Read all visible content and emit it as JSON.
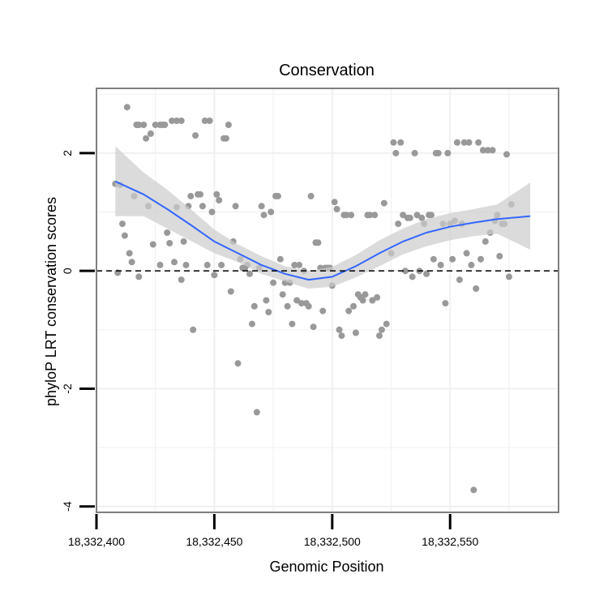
{
  "chart_data": {
    "type": "scatter",
    "title": "Conservation",
    "xlabel": "Genomic Position",
    "ylabel": "phyloP LRT conservation scores",
    "xlim": [
      18332400,
      18332596
    ],
    "ylim": [
      -4.1,
      3.1
    ],
    "x_ticks": [
      18332400,
      18332450,
      18332500,
      18332550
    ],
    "x_tick_labels": [
      "18,332,400",
      "18,332,450",
      "18,332,500",
      "18,332,550"
    ],
    "y_ticks": [
      -4,
      -2,
      0,
      2
    ],
    "y_tick_labels": [
      "-4",
      "-2",
      "0",
      "2"
    ],
    "grid": true,
    "reference_line": {
      "y": 0,
      "style": "dashed"
    },
    "colors": {
      "points": "#999999",
      "smooth_line": "#3366ff",
      "confidence_band": "#cccccc",
      "panel_border": "#7f7f7f",
      "grid": "#f0f0f0"
    },
    "points": [
      [
        18332408,
        1.48
      ],
      [
        18332409,
        -0.03
      ],
      [
        18332410,
        1.46
      ],
      [
        18332411,
        0.8
      ],
      [
        18332412,
        0.6
      ],
      [
        18332413,
        2.78
      ],
      [
        18332414,
        0.3
      ],
      [
        18332415,
        0.15
      ],
      [
        18332416,
        1.27
      ],
      [
        18332417,
        2.48
      ],
      [
        18332418,
        2.48
      ],
      [
        18332418,
        -0.1
      ],
      [
        18332420,
        2.48
      ],
      [
        18332421,
        2.25
      ],
      [
        18332422,
        1.1
      ],
      [
        18332423,
        2.33
      ],
      [
        18332424,
        0.45
      ],
      [
        18332425,
        2.48
      ],
      [
        18332427,
        2.48
      ],
      [
        18332427,
        0.1
      ],
      [
        18332428,
        2.48
      ],
      [
        18332429,
        2.48
      ],
      [
        18332430,
        0.65
      ],
      [
        18332431,
        0.47
      ],
      [
        18332432,
        2.55
      ],
      [
        18332433,
        0.15
      ],
      [
        18332434,
        2.55
      ],
      [
        18332434,
        1.08
      ],
      [
        18332436,
        2.55
      ],
      [
        18332436,
        -0.15
      ],
      [
        18332437,
        0.5
      ],
      [
        18332438,
        0.1
      ],
      [
        18332439,
        1.1
      ],
      [
        18332440,
        1.27
      ],
      [
        18332441,
        -1.0
      ],
      [
        18332442,
        2.3
      ],
      [
        18332443,
        1.3
      ],
      [
        18332444,
        1.3
      ],
      [
        18332445,
        1.1
      ],
      [
        18332446,
        2.55
      ],
      [
        18332447,
        0.1
      ],
      [
        18332448,
        2.55
      ],
      [
        18332449,
        1.0
      ],
      [
        18332450,
        -0.07
      ],
      [
        18332451,
        1.3
      ],
      [
        18332452,
        1.2
      ],
      [
        18332453,
        0.1
      ],
      [
        18332454,
        2.25
      ],
      [
        18332455,
        2.25
      ],
      [
        18332456,
        2.48
      ],
      [
        18332457,
        -0.35
      ],
      [
        18332458,
        0.5
      ],
      [
        18332459,
        1.1
      ],
      [
        18332460,
        -1.57
      ],
      [
        18332461,
        0.2
      ],
      [
        18332462,
        0.05
      ],
      [
        18332463,
        0.05
      ],
      [
        18332464,
        0.1
      ],
      [
        18332465,
        -0.05
      ],
      [
        18332466,
        -0.9
      ],
      [
        18332467,
        -0.6
      ],
      [
        18332468,
        -2.4
      ],
      [
        18332469,
        0.05
      ],
      [
        18332470,
        1.1
      ],
      [
        18332471,
        0.95
      ],
      [
        18332472,
        -0.5
      ],
      [
        18332473,
        -0.7
      ],
      [
        18332474,
        1.0
      ],
      [
        18332475,
        -0.2
      ],
      [
        18332476,
        1.27
      ],
      [
        18332477,
        1.27
      ],
      [
        18332478,
        0.2
      ],
      [
        18332479,
        -0.4
      ],
      [
        18332480,
        -0.2
      ],
      [
        18332481,
        -0.6
      ],
      [
        18332482,
        -0.2
      ],
      [
        18332483,
        -0.9
      ],
      [
        18332484,
        0.1
      ],
      [
        18332485,
        -0.5
      ],
      [
        18332486,
        0.1
      ],
      [
        18332487,
        -0.55
      ],
      [
        18332488,
        0.0
      ],
      [
        18332489,
        -0.55
      ],
      [
        18332490,
        -0.6
      ],
      [
        18332491,
        1.27
      ],
      [
        18332492,
        -0.95
      ],
      [
        18332493,
        0.48
      ],
      [
        18332494,
        0.48
      ],
      [
        18332495,
        0.05
      ],
      [
        18332496,
        -0.68
      ],
      [
        18332497,
        0.05
      ],
      [
        18332498,
        0.05
      ],
      [
        18332499,
        0.05
      ],
      [
        18332500,
        -0.25
      ],
      [
        18332501,
        1.17
      ],
      [
        18332502,
        1.05
      ],
      [
        18332503,
        -1.0
      ],
      [
        18332504,
        -1.1
      ],
      [
        18332505,
        0.95
      ],
      [
        18332506,
        0.95
      ],
      [
        18332507,
        -0.68
      ],
      [
        18332508,
        0.95
      ],
      [
        18332509,
        -0.6
      ],
      [
        18332510,
        -1.05
      ],
      [
        18332511,
        -0.4
      ],
      [
        18332512,
        -0.45
      ],
      [
        18332513,
        -0.5
      ],
      [
        18332514,
        -0.4
      ],
      [
        18332515,
        0.95
      ],
      [
        18332516,
        0.95
      ],
      [
        18332517,
        -0.5
      ],
      [
        18332518,
        0.95
      ],
      [
        18332519,
        -0.45
      ],
      [
        18332520,
        -1.1
      ],
      [
        18332521,
        -1.0
      ],
      [
        18332522,
        1.15
      ],
      [
        18332523,
        -0.9
      ],
      [
        18332525,
        0.3
      ],
      [
        18332526,
        2.18
      ],
      [
        18332527,
        2.0
      ],
      [
        18332528,
        0.8
      ],
      [
        18332529,
        2.18
      ],
      [
        18332530,
        0.95
      ],
      [
        18332531,
        0.0
      ],
      [
        18332532,
        0.9
      ],
      [
        18332533,
        0.9
      ],
      [
        18332534,
        -0.1
      ],
      [
        18332535,
        2.0
      ],
      [
        18332536,
        0.95
      ],
      [
        18332537,
        0.0
      ],
      [
        18332538,
        0.9
      ],
      [
        18332539,
        0.8
      ],
      [
        18332540,
        -0.05
      ],
      [
        18332541,
        0.95
      ],
      [
        18332542,
        0.95
      ],
      [
        18332543,
        0.2
      ],
      [
        18332544,
        2.0
      ],
      [
        18332545,
        2.0
      ],
      [
        18332546,
        0.1
      ],
      [
        18332547,
        0.8
      ],
      [
        18332548,
        -0.55
      ],
      [
        18332549,
        2.0
      ],
      [
        18332550,
        0.8
      ],
      [
        18332551,
        0.2
      ],
      [
        18332552,
        0.85
      ],
      [
        18332553,
        2.18
      ],
      [
        18332554,
        -0.15
      ],
      [
        18332555,
        0.8
      ],
      [
        18332556,
        2.18
      ],
      [
        18332557,
        0.3
      ],
      [
        18332558,
        2.18
      ],
      [
        18332559,
        0.1
      ],
      [
        18332560,
        -3.72
      ],
      [
        18332561,
        -0.3
      ],
      [
        18332562,
        2.18
      ],
      [
        18332563,
        0.2
      ],
      [
        18332564,
        2.05
      ],
      [
        18332565,
        0.5
      ],
      [
        18332566,
        2.05
      ],
      [
        18332567,
        0.65
      ],
      [
        18332568,
        2.05
      ],
      [
        18332569,
        0.85
      ],
      [
        18332570,
        0.95
      ],
      [
        18332571,
        0.25
      ],
      [
        18332572,
        0.8
      ],
      [
        18332573,
        0.8
      ],
      [
        18332574,
        1.98
      ],
      [
        18332575,
        -0.1
      ],
      [
        18332576,
        1.13
      ]
    ],
    "smooth_fit": [
      [
        18332408,
        1.52
      ],
      [
        18332420,
        1.3
      ],
      [
        18332430,
        1.05
      ],
      [
        18332440,
        0.78
      ],
      [
        18332450,
        0.5
      ],
      [
        18332460,
        0.3
      ],
      [
        18332470,
        0.1
      ],
      [
        18332480,
        -0.05
      ],
      [
        18332490,
        -0.15
      ],
      [
        18332500,
        -0.1
      ],
      [
        18332510,
        0.08
      ],
      [
        18332520,
        0.3
      ],
      [
        18332530,
        0.5
      ],
      [
        18332540,
        0.65
      ],
      [
        18332550,
        0.75
      ],
      [
        18332560,
        0.82
      ],
      [
        18332570,
        0.88
      ],
      [
        18332584,
        0.93
      ]
    ],
    "confidence_upper": [
      [
        18332408,
        2.12
      ],
      [
        18332420,
        1.67
      ],
      [
        18332430,
        1.38
      ],
      [
        18332440,
        1.05
      ],
      [
        18332450,
        0.7
      ],
      [
        18332460,
        0.45
      ],
      [
        18332470,
        0.25
      ],
      [
        18332480,
        0.08
      ],
      [
        18332490,
        0.0
      ],
      [
        18332500,
        0.07
      ],
      [
        18332510,
        0.27
      ],
      [
        18332520,
        0.52
      ],
      [
        18332530,
        0.72
      ],
      [
        18332540,
        0.88
      ],
      [
        18332550,
        0.98
      ],
      [
        18332560,
        1.05
      ],
      [
        18332570,
        1.13
      ],
      [
        18332584,
        1.5
      ]
    ],
    "confidence_lower": [
      [
        18332408,
        0.93
      ],
      [
        18332420,
        0.93
      ],
      [
        18332430,
        0.72
      ],
      [
        18332440,
        0.51
      ],
      [
        18332450,
        0.3
      ],
      [
        18332460,
        0.15
      ],
      [
        18332470,
        -0.05
      ],
      [
        18332480,
        -0.18
      ],
      [
        18332490,
        -0.3
      ],
      [
        18332500,
        -0.27
      ],
      [
        18332510,
        -0.11
      ],
      [
        18332520,
        0.08
      ],
      [
        18332530,
        0.28
      ],
      [
        18332540,
        0.42
      ],
      [
        18332550,
        0.52
      ],
      [
        18332560,
        0.59
      ],
      [
        18332570,
        0.63
      ],
      [
        18332584,
        0.36
      ]
    ]
  }
}
